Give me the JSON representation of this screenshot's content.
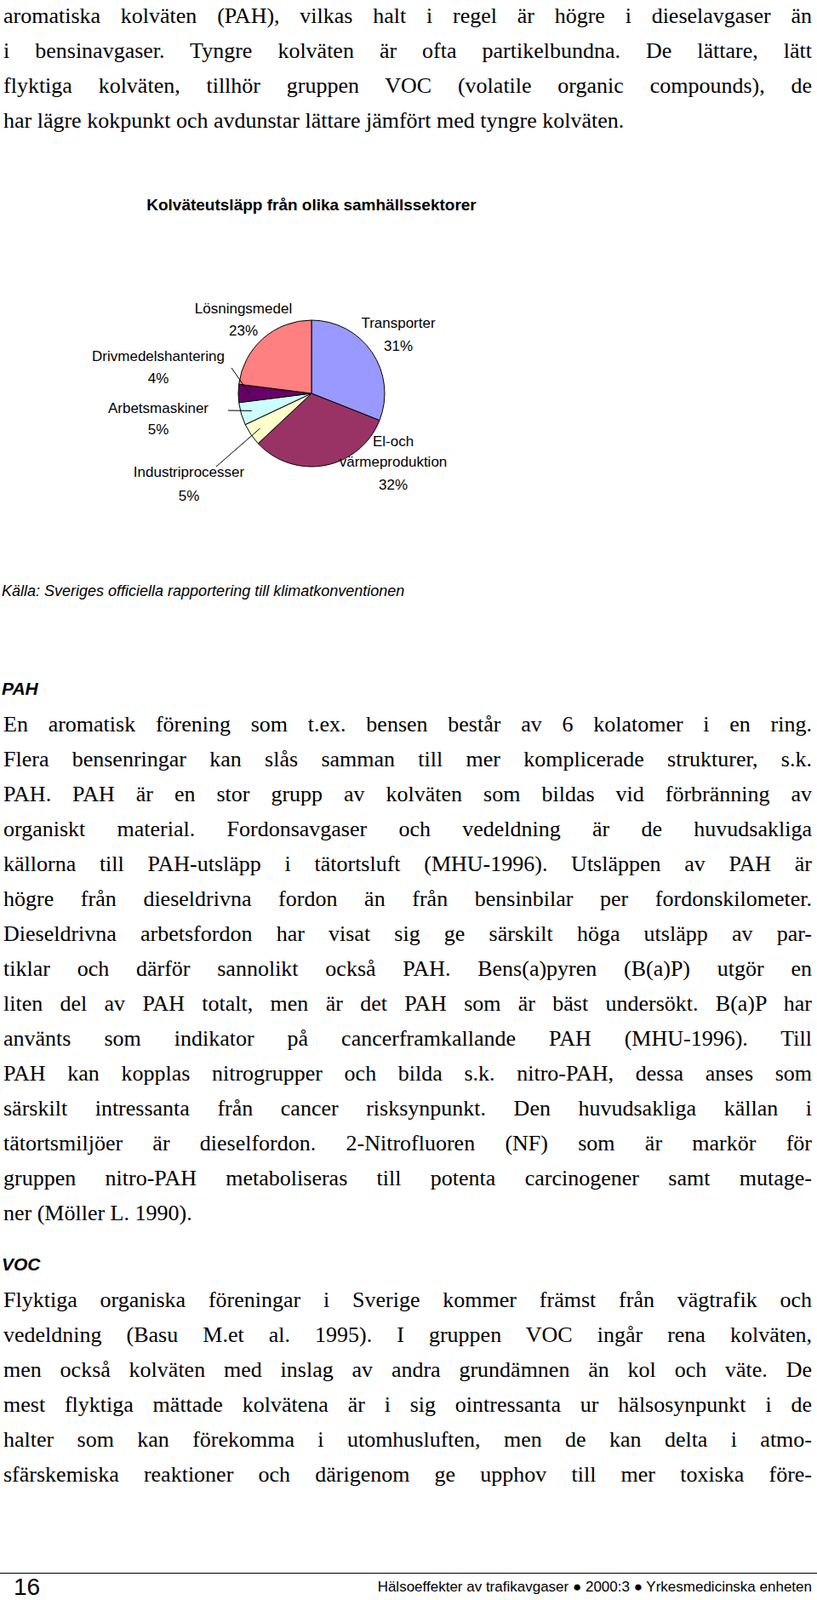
{
  "top_paragraph": {
    "lines": [
      "aromatiska kolväten (PAH), vilkas halt i regel är högre i dieselavgaser än",
      "i bensinavgaser. Tyngre kolväten är ofta partikelbundna. De lättare, lätt",
      "flyktiga kolväten, tillhör gruppen VOC (volatile organic compounds), de",
      "har lägre kokpunkt och avdunstar lättare jämfört med tyngre kolväten."
    ]
  },
  "chart_data": {
    "type": "pie",
    "title": "Kolväteutsläpp från olika samhällssektorer",
    "categories": [
      "Transporter",
      "El-och värmeproduktion",
      "Industriprocesser",
      "Arbetsmaskiner",
      "Drivmedelshantering",
      "Lösningsmedel"
    ],
    "values": [
      31,
      32,
      5,
      5,
      4,
      23
    ],
    "value_labels": [
      "31%",
      "32%",
      "5%",
      "5%",
      "4%",
      "23%"
    ],
    "colors": [
      "#9999ff",
      "#993366",
      "#ffffcc",
      "#ccffff",
      "#660066",
      "#ff8080"
    ],
    "data_labels": true
  },
  "source": "Källa: Sveriges officiella rapportering till klimatkonventionen",
  "sections": [
    {
      "heading": "PAH",
      "lines": [
        "En aromatisk förening som t.ex. bensen består av 6 kolatomer i en ring.",
        "Flera bensenringar kan slås samman till mer komplicerade strukturer, s.k.",
        "PAH. PAH är en stor grupp av kolväten som bildas vid förbränning av",
        "organiskt material. Fordonsavgaser och vedeldning är de huvudsakliga",
        "källorna till PAH-utsläpp i tätortsluft (MHU-1996). Utsläppen av PAH är",
        "högre från dieseldrivna fordon än från bensinbilar per fordonskilometer.",
        "Dieseldrivna arbetsfordon har visat sig ge särskilt höga utsläpp av par-",
        "tiklar och därför sannolikt också PAH. Bens(a)pyren (B(a)P) utgör en",
        "liten del av PAH totalt, men är det PAH som är bäst undersökt. B(a)P har",
        "använts som indikator på cancerframkallande PAH (MHU-1996). Till",
        "PAH kan kopplas nitrogrupper och bilda s.k. nitro-PAH, dessa anses som",
        "särskilt intressanta från cancer risksynpunkt. Den huvudsakliga källan i",
        "tätortsmiljöer är dieselfordon. 2-Nitrofluoren (NF) som är markör för",
        "gruppen nitro-PAH metaboliseras till potenta carcinogener samt mutage-",
        "ner (Möller L. 1990)."
      ]
    },
    {
      "heading": "VOC",
      "lines": [
        "Flyktiga organiska föreningar i Sverige kommer främst från vägtrafik och",
        "vedeldning (Basu M.et al. 1995). I gruppen VOC ingår rena kolväten,",
        "men också kolväten med inslag av andra grundämnen än kol och väte. De",
        "mest flyktiga mättade kolvätena är i sig ointressanta ur hälsosynpunkt i de",
        "halter som kan förekomma i utomhusluften, men de kan delta i atmo-",
        "sfärskemiska reaktioner och därigenom ge upphov till mer toxiska före-"
      ]
    }
  ],
  "footer": {
    "page": "16",
    "text": "Hälsoeffekter av trafikavgaser ● 2000:3 ● Yrkesmedicinska enheten"
  }
}
